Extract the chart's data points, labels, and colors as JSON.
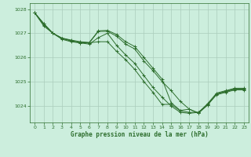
{
  "xlabel": "Graphe pression niveau de la mer (hPa)",
  "xlim": [
    -0.5,
    23.5
  ],
  "ylim": [
    1023.3,
    1028.25
  ],
  "yticks": [
    1024,
    1025,
    1026,
    1027,
    1028
  ],
  "xticks": [
    0,
    1,
    2,
    3,
    4,
    5,
    6,
    7,
    8,
    9,
    10,
    11,
    12,
    13,
    14,
    15,
    16,
    17,
    18,
    19,
    20,
    21,
    22,
    23
  ],
  "bg_color": "#cceedd",
  "line_color": "#2d6e2d",
  "grid_color": "#aaccbb",
  "lines": [
    [
      1027.85,
      1027.4,
      1027.0,
      1026.8,
      1026.7,
      1026.6,
      1026.6,
      1026.65,
      1026.65,
      1026.25,
      1025.9,
      1025.5,
      1025.0,
      1024.55,
      1024.05,
      1024.05,
      1023.78,
      1023.72,
      1023.72,
      1024.05,
      1024.45,
      1024.55,
      1024.65,
      1024.65
    ],
    [
      1027.85,
      1027.35,
      1027.0,
      1026.75,
      1026.65,
      1026.6,
      1026.55,
      1026.82,
      1027.0,
      1026.5,
      1026.1,
      1025.75,
      1025.25,
      1024.75,
      1024.35,
      1023.98,
      1023.72,
      1023.68,
      1023.72,
      1024.02,
      1024.48,
      1024.58,
      1024.68,
      1024.68
    ],
    [
      1027.85,
      1027.3,
      1027.0,
      1026.78,
      1026.68,
      1026.62,
      1026.6,
      1027.08,
      1027.08,
      1026.88,
      1026.55,
      1026.35,
      1025.85,
      1025.45,
      1025.0,
      1024.62,
      1024.18,
      1023.85,
      1023.68,
      1024.02,
      1024.48,
      1024.6,
      1024.7,
      1024.7
    ],
    [
      1027.85,
      1027.4,
      1027.0,
      1026.8,
      1026.72,
      1026.65,
      1026.62,
      1027.1,
      1027.12,
      1026.95,
      1026.65,
      1026.45,
      1026.0,
      1025.55,
      1025.1,
      1024.12,
      1023.8,
      1023.85,
      1023.7,
      1024.08,
      1024.52,
      1024.62,
      1024.72,
      1024.72
    ]
  ]
}
